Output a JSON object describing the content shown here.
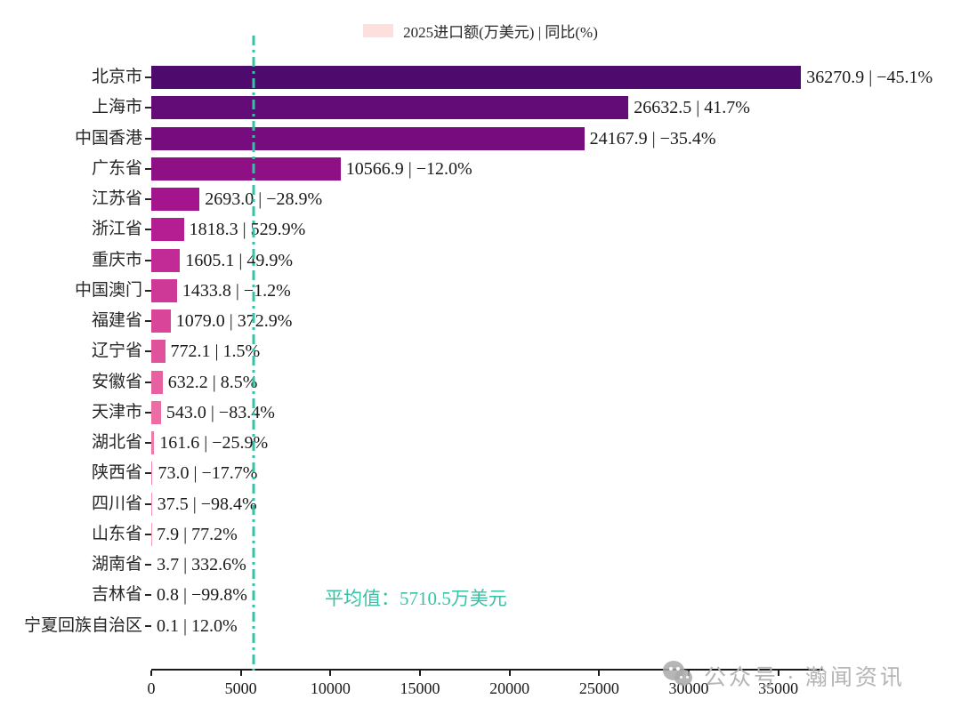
{
  "legend": {
    "label": "2025进口额(万美元) | 同比(%)",
    "swatch_color": "#fde0dd"
  },
  "chart_data": {
    "type": "bar",
    "orientation": "horizontal",
    "title": "",
    "xlabel": "",
    "ylabel": "",
    "grid": false,
    "legend_position": "top-center",
    "categories": [
      "北京市",
      "上海市",
      "中国香港",
      "广东省",
      "江苏省",
      "浙江省",
      "重庆市",
      "中国澳门",
      "福建省",
      "辽宁省",
      "安徽省",
      "天津市",
      "湖北省",
      "陕西省",
      "四川省",
      "山东省",
      "湖南省",
      "吉林省",
      "宁夏回族自治区"
    ],
    "series": [
      {
        "name": "2025进口额(万美元)",
        "values": [
          36270.9,
          26632.5,
          24167.9,
          10566.9,
          2693.0,
          1818.3,
          1605.1,
          1433.8,
          1079.0,
          772.1,
          632.2,
          543.0,
          161.6,
          73.0,
          37.5,
          7.9,
          3.7,
          0.8,
          0.1
        ]
      },
      {
        "name": "同比(%)",
        "values": [
          -45.1,
          41.7,
          -35.4,
          -12.0,
          -28.9,
          529.9,
          49.9,
          -1.2,
          372.9,
          1.5,
          8.5,
          -83.4,
          -25.9,
          -17.7,
          -98.4,
          77.2,
          332.6,
          -99.8,
          12.0
        ]
      }
    ],
    "bar_labels": [
      "36270.9 | −45.1%",
      "26632.5 | 41.7%",
      "24167.9 | −35.4%",
      "10566.9 | −12.0%",
      "2693.0 | −28.9%",
      "1818.3 | 529.9%",
      "1605.1 | 49.9%",
      "1433.8 | −1.2%",
      "1079.0 | 372.9%",
      "772.1 | 1.5%",
      "632.2 | 8.5%",
      "543.0 | −83.4%",
      "161.6 | −25.9%",
      "73.0 | −17.7%",
      "37.5 | −98.4%",
      "7.9 | 77.2%",
      "3.7 | 332.6%",
      "0.8 | −99.8%",
      "0.1 | 12.0%"
    ],
    "bar_colors": [
      "#4f0a6d",
      "#630b76",
      "#770c7e",
      "#8f0f85",
      "#a4148d",
      "#b51e92",
      "#c22b95",
      "#ce3897",
      "#d84599",
      "#e0529c",
      "#e7609f",
      "#ec6da3",
      "#f07aa7",
      "#f487ab",
      "#f794b0",
      "#f99fb4",
      "#fbaab9",
      "#fcb5bd",
      "#fdc0c2"
    ],
    "xlim": [
      0,
      37500
    ],
    "x_tick_values": [
      0,
      5000,
      10000,
      15000,
      20000,
      25000,
      30000,
      35000
    ],
    "x_tick_labels": [
      "0",
      "5000",
      "10000",
      "15000",
      "20000",
      "25000",
      "30000",
      "35000"
    ],
    "mean": {
      "value": 5710.5,
      "annotation": "平均值：5710.5万美元",
      "line_color": "#38c2a5"
    }
  },
  "watermark": {
    "text": "公众号 · 瀚闻资讯"
  },
  "colors": {
    "axis": "#1a1a1a",
    "mean_teal": "#38c2a5",
    "watermark_gray": "#b5b5b5"
  }
}
